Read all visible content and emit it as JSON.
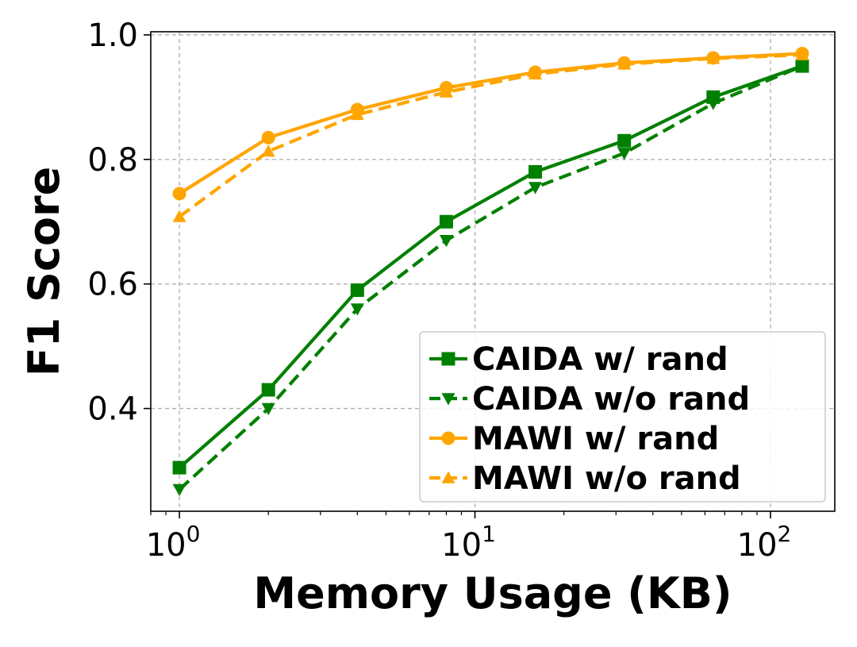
{
  "chart_data": {
    "type": "line",
    "xlabel": "Memory Usage (KB)",
    "ylabel": "F1 Score",
    "xscale": "log",
    "xlim": [
      0.8,
      165
    ],
    "ylim": [
      0.235,
      1.005
    ],
    "grid": true,
    "legend_position": "lower-right",
    "x": [
      1,
      2,
      4,
      8,
      16,
      32,
      64,
      128
    ],
    "x_ticks": [
      {
        "value": 1,
        "base": "10",
        "exp": "0"
      },
      {
        "value": 10,
        "base": "10",
        "exp": "1"
      },
      {
        "value": 100,
        "base": "10",
        "exp": "2"
      }
    ],
    "y_ticks": [
      {
        "value": 0.4,
        "label": "0.4"
      },
      {
        "value": 0.6,
        "label": "0.6"
      },
      {
        "value": 0.8,
        "label": "0.8"
      },
      {
        "value": 1.0,
        "label": "1.0"
      }
    ],
    "series": [
      {
        "name": "CAIDA w/ rand",
        "color": "#008000",
        "dash": "solid",
        "marker": "square",
        "values": [
          0.305,
          0.43,
          0.59,
          0.7,
          0.78,
          0.83,
          0.9,
          0.95
        ]
      },
      {
        "name": "CAIDA w/o rand",
        "color": "#008000",
        "dash": "dashed",
        "marker": "triangle-down",
        "values": [
          0.27,
          0.4,
          0.56,
          0.67,
          0.755,
          0.81,
          0.89,
          0.95
        ]
      },
      {
        "name": "MAWI w/ rand",
        "color": "#FFA500",
        "dash": "solid",
        "marker": "circle",
        "values": [
          0.745,
          0.835,
          0.88,
          0.915,
          0.94,
          0.955,
          0.963,
          0.97
        ]
      },
      {
        "name": "MAWI w/o rand",
        "color": "#FFA500",
        "dash": "dashed",
        "marker": "triangle-up",
        "values": [
          0.708,
          0.813,
          0.872,
          0.908,
          0.937,
          0.953,
          0.962,
          0.968
        ]
      }
    ]
  }
}
